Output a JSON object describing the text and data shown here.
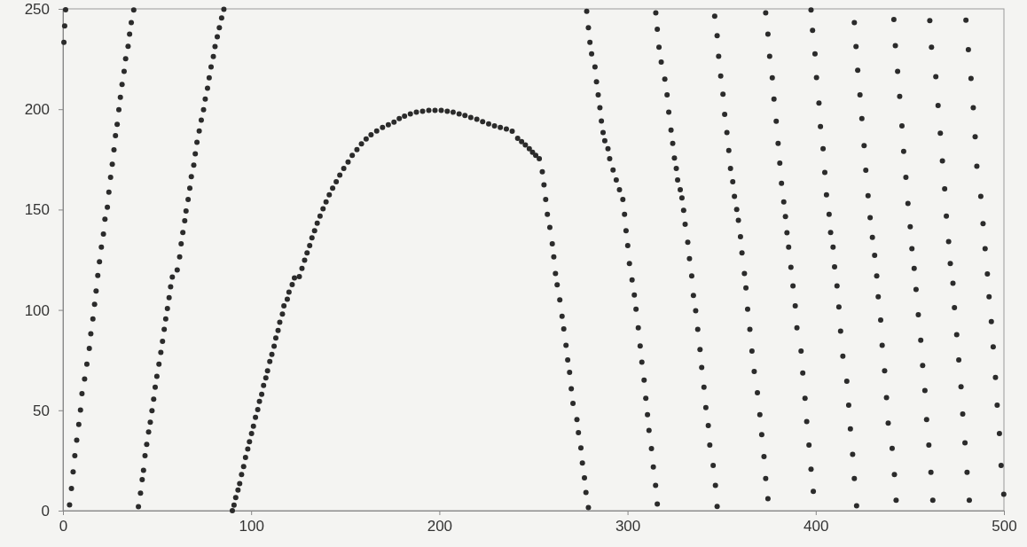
{
  "chart_data": {
    "type": "scatter",
    "marker": "circle",
    "grid": false,
    "xlim": [
      0,
      500
    ],
    "xticks": [
      0,
      100,
      200,
      300,
      400,
      500
    ],
    "ylim": [
      0,
      250
    ],
    "yticks": [
      0,
      50,
      100,
      150,
      200,
      250
    ],
    "series": [
      {
        "color": "#2b2b2b",
        "x": [
          1.4,
          0.9,
          0.5,
          3.5,
          4.5,
          5.4,
          6.3,
          7.3,
          8.4,
          9.3,
          10.1,
          11.5,
          12.7,
          14,
          14.8,
          15.9,
          16.8,
          17.6,
          18.5,
          19.4,
          20.4,
          21.5,
          22.3,
          23.6,
          24.4,
          25.3,
          26.2,
          27.1,
          27.9,
          28.8,
          29.7,
          30.5,
          31.4,
          32.5,
          33.3,
          34.6,
          35.4,
          36.3,
          37.6,
          40.1,
          41.2,
          42.1,
          42.8,
          43.6,
          44.5,
          45.5,
          46.4,
          47.3,
          48.2,
          49,
          49.9,
          51,
          52,
          52.9,
          53.8,
          54.6,
          55.5,
          56.4,
          57.2,
          58.1,
          60.7,
          62,
          62.8,
          63.7,
          64.7,
          65.4,
          66.5,
          67.4,
          68.2,
          69.5,
          70.3,
          71.2,
          72.4,
          73.5,
          74.7,
          75.6,
          76.8,
          77.7,
          78.7,
          79.9,
          80.8,
          82,
          83.1,
          84.3,
          85.5,
          90,
          90.9,
          91.8,
          93,
          93.9,
          94.9,
          96,
          97,
          98.2,
          99.1,
          100.2,
          101.2,
          102.3,
          103.5,
          104.4,
          105.6,
          106.6,
          107.8,
          108.7,
          109.9,
          111,
          112.2,
          113.1,
          114.3,
          115.2,
          116.6,
          117.4,
          119.2,
          120.1,
          121.8,
          123,
          125.6,
          127,
          128.4,
          129.7,
          131.1,
          132.3,
          133.7,
          135.1,
          136.6,
          138.2,
          139.8,
          141.5,
          143.3,
          145.2,
          147.1,
          149.2,
          151.5,
          153.7,
          156.2,
          158.6,
          161.1,
          163.7,
          166.7,
          169.8,
          172.9,
          175.9,
          178.7,
          181.5,
          184.6,
          187.8,
          191.1,
          194.4,
          197.7,
          201,
          204.2,
          207.3,
          210.5,
          213.6,
          216.7,
          219.9,
          223,
          226.2,
          229.3,
          232.4,
          235.6,
          238.7,
          241.6,
          243.7,
          245.7,
          247.8,
          249.5,
          251.2,
          253.1,
          254.7,
          255.6,
          256.5,
          257.4,
          258.7,
          260,
          260.8,
          261.7,
          262.6,
          264,
          265.2,
          266.1,
          267.3,
          268.2,
          269.2,
          270.1,
          271,
          273.1,
          273.9,
          275.2,
          276,
          277.1,
          277.9,
          279.2,
          278.3,
          279.2,
          280,
          280.9,
          282.7,
          283.5,
          284.4,
          285.3,
          286.1,
          287,
          287.9,
          289.6,
          290.5,
          292.3,
          294,
          295.7,
          297.5,
          298.4,
          299.2,
          300.1,
          301,
          302.4,
          303.6,
          304.5,
          305.7,
          306.7,
          307.6,
          308.8,
          309.7,
          310.6,
          311.4,
          312.7,
          313.7,
          314.9,
          315.8,
          315,
          315.8,
          316.7,
          317.9,
          319.8,
          321,
          321.9,
          323.1,
          324,
          324.9,
          325.9,
          326.6,
          328,
          328.9,
          329.8,
          330.6,
          332,
          332.9,
          334.1,
          335,
          336.2,
          337.3,
          338.5,
          339.4,
          340.6,
          341.6,
          342.9,
          343.7,
          345.5,
          346.7,
          347.6,
          346.3,
          347.6,
          348.4,
          349.5,
          350.7,
          351.6,
          352.8,
          353.8,
          354.7,
          355.9,
          356.8,
          358,
          358.9,
          360,
          360.8,
          362.1,
          362.9,
          363.8,
          365,
          366.1,
          367.3,
          369,
          370.3,
          371.3,
          372.5,
          373.4,
          374.6,
          373.4,
          374.6,
          375.5,
          376.9,
          377.8,
          379,
          380,
          380.9,
          381.8,
          383,
          383.9,
          384.7,
          385.6,
          386.8,
          387.9,
          389.1,
          390,
          392.2,
          393.1,
          394.3,
          395.2,
          396.4,
          397.5,
          398.7,
          397.5,
          398.3,
          399.6,
          400.4,
          401.7,
          402.5,
          403.9,
          404.8,
          405.7,
          407.1,
          407.9,
          409.2,
          410,
          411.3,
          412.3,
          413.2,
          414.4,
          416.5,
          417.5,
          418.4,
          419.6,
          420.5,
          421.7,
          420.5,
          421.4,
          422.3,
          423.5,
          424.5,
          425.7,
          426.6,
          427.8,
          428.9,
          430.1,
          431.3,
          432.4,
          433.2,
          434.5,
          435.3,
          436.6,
          437.6,
          438.5,
          440.6,
          441.8,
          442.7,
          441.5,
          442.3,
          443.5,
          444.6,
          445.8,
          446.7,
          447.9,
          449,
          450.2,
          451.1,
          452.3,
          453.3,
          454.5,
          455.8,
          456.8,
          458,
          458.9,
          460.1,
          461.2,
          462.2,
          460.6,
          461.5,
          463.8,
          465,
          466.2,
          467.3,
          468.5,
          469.4,
          470.6,
          471.5,
          472.9,
          473.7,
          474.9,
          476,
          477.2,
          478.1,
          479.3,
          480.4,
          481.6,
          479.8,
          481.1,
          482.5,
          483.7,
          484.7,
          485.6,
          487.7,
          488.9,
          490,
          491.2,
          492.1,
          493.3,
          494.3,
          495.5,
          496.4,
          497.6,
          498.5,
          499.9
        ],
        "values": [
          249.6,
          241.5,
          233.3,
          2.9,
          11,
          19.3,
          27.4,
          35.1,
          42.9,
          50.1,
          58.3,
          65.6,
          73,
          80.8,
          88.1,
          95.5,
          102.8,
          109.4,
          117.2,
          124,
          131.3,
          137.8,
          145.2,
          151.2,
          158.7,
          166.1,
          172.6,
          179.8,
          186.8,
          192.5,
          199.8,
          205.9,
          212.4,
          218.9,
          225.1,
          231.3,
          237.4,
          243.1,
          249.4,
          2,
          8.7,
          15.5,
          20.1,
          27.4,
          33,
          39.2,
          44.1,
          49.8,
          55.5,
          61.5,
          66.9,
          73,
          78.8,
          84.4,
          90.3,
          95.5,
          100.7,
          106.1,
          111.5,
          116.4,
          119.9,
          126.4,
          133,
          138.6,
          144.4,
          149.3,
          155,
          160.7,
          166.4,
          172.1,
          177.8,
          183.5,
          189.2,
          194.6,
          199.8,
          205.1,
          210.5,
          215.7,
          221.1,
          226.3,
          231.2,
          236.1,
          240.6,
          245.5,
          249.8,
          0,
          2.8,
          6.5,
          10.3,
          13.5,
          18,
          22,
          26.5,
          30.7,
          34.3,
          38.4,
          42.1,
          46.5,
          50.3,
          54.4,
          58,
          62.4,
          66.1,
          69.7,
          74.3,
          77.9,
          81.9,
          86,
          89.8,
          93.9,
          97.9,
          102,
          105.3,
          108.9,
          112.6,
          115.9,
          116.6,
          120.7,
          124.8,
          128.4,
          132.1,
          135.9,
          139.5,
          143.2,
          146.8,
          150.4,
          153.8,
          157.4,
          160.7,
          163.9,
          167.2,
          170.5,
          173.7,
          177,
          179.9,
          182.7,
          185.2,
          187.3,
          189.2,
          190.9,
          192.2,
          193.6,
          195.3,
          196.6,
          197.7,
          198.5,
          199,
          199.4,
          199.4,
          199.4,
          199,
          198.5,
          197.7,
          196.9,
          195.9,
          195,
          193.8,
          192.7,
          191.7,
          190.9,
          190.1,
          189.1,
          185.5,
          183.9,
          182.2,
          180.3,
          178.6,
          177,
          175.4,
          168.8,
          162.3,
          155,
          147.6,
          141.1,
          132.9,
          126.4,
          118.2,
          112.5,
          105,
          96.8,
          90.6,
          82.4,
          75.1,
          68.9,
          60.7,
          53.4,
          45.4,
          38.9,
          31.3,
          23.7,
          16.3,
          9,
          1.6,
          248.8,
          240.6,
          233.3,
          227.6,
          221.1,
          213.7,
          207.2,
          200.7,
          194.1,
          188.4,
          184.3,
          180.3,
          175.4,
          169.7,
          164.8,
          159.9,
          155,
          147.6,
          139.5,
          132.1,
          123.1,
          115,
          107.4,
          100.4,
          91.1,
          82.1,
          74,
          65,
          56,
          47.8,
          40,
          30.9,
          21.7,
          12.6,
          3.3,
          248,
          239.8,
          230.9,
          223.5,
          215,
          207.2,
          198.5,
          189.6,
          183,
          175.7,
          170.5,
          164.8,
          159.9,
          155.8,
          149.6,
          142.7,
          133.7,
          125.6,
          116.9,
          107.2,
          99.6,
          90.3,
          80.3,
          71.3,
          61.5,
          51.4,
          42.4,
          32.7,
          22.5,
          12.6,
          2.1,
          246.4,
          236.6,
          226.4,
          216.5,
          207.5,
          197.4,
          188.4,
          179.4,
          170.5,
          163.9,
          156.6,
          150.1,
          144.7,
          136.5,
          128.4,
          118.2,
          111,
          100.4,
          90.3,
          79.5,
          69.4,
          58.8,
          47.8,
          37.9,
          26.9,
          16,
          6,
          248,
          237.4,
          226.4,
          215.7,
          205.1,
          194,
          183,
          173.2,
          163.1,
          153.8,
          146.5,
          138.5,
          131.3,
          121.2,
          112,
          102,
          91.1,
          79.5,
          68.6,
          56,
          44.4,
          32.7,
          20.7,
          9.6,
          249.5,
          239.3,
          227.6,
          215.8,
          203.1,
          191.4,
          180.3,
          168.5,
          157.4,
          147.6,
          138.6,
          131.3,
          121.5,
          112,
          101.5,
          89.4,
          77,
          64.5,
          52.6,
          40.8,
          28.1,
          16,
          2.4,
          243.1,
          231.2,
          219.4,
          207.2,
          195.3,
          181.9,
          169.6,
          156.9,
          146,
          136.2,
          127.2,
          116.9,
          106.6,
          95,
          82.4,
          69.7,
          56.3,
          43.6,
          31,
          18,
          5.2,
          244.7,
          231.7,
          218.9,
          206.4,
          191.7,
          179,
          166.1,
          153,
          141.4,
          130.5,
          120.7,
          110.2,
          97.6,
          84.9,
          72.3,
          59.9,
          45.4,
          32.7,
          19.1,
          5.2,
          244.2,
          230.9,
          216.2,
          201.8,
          188.1,
          174.2,
          160.3,
          146.8,
          134.1,
          123.1,
          113.3,
          101.2,
          87.7,
          75.1,
          61.7,
          48.2,
          33.8,
          19.1,
          5.2,
          244.4,
          229.7,
          215.3,
          200.7,
          186.3,
          171.6,
          156.6,
          143,
          130.5,
          117.9,
          106.6,
          94.2,
          81.6,
          66.4,
          52.6,
          38.4,
          22.5,
          8.2
        ]
      }
    ]
  }
}
